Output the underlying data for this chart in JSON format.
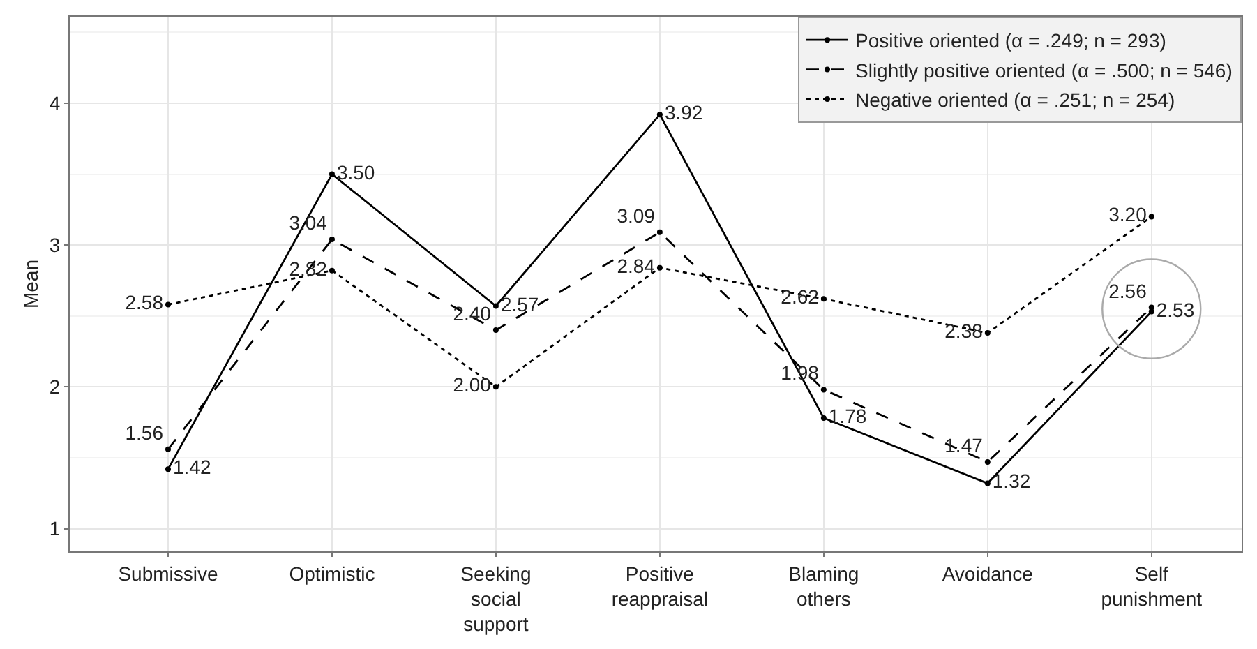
{
  "chart_data": {
    "type": "line",
    "ylabel": "Mean",
    "categories": [
      "Submissive",
      "Optimistic",
      "Seeking social support",
      "Positive reappraisal",
      "Blaming others",
      "Avoidance",
      "Self punishment"
    ],
    "series": [
      {
        "name": "Positive oriented (α = .249; n = 293)",
        "color": "#000000",
        "line_style": "solid",
        "values": [
          1.42,
          3.5,
          2.57,
          3.92,
          1.78,
          1.32,
          2.53
        ],
        "value_labels": [
          "1.42",
          "3.50",
          "2.57",
          "3.92",
          "1.78",
          "1.32",
          "2.53"
        ]
      },
      {
        "name": "Slightly positive oriented (α = .500; n = 546)",
        "color": "#000000",
        "line_style": "dashed",
        "values": [
          1.56,
          3.04,
          2.4,
          3.09,
          1.98,
          1.47,
          2.56
        ],
        "value_labels": [
          "1.56",
          "3.04",
          "2.40",
          "3.09",
          "1.98",
          "1.47",
          "2.56"
        ]
      },
      {
        "name": "Negative oriented (α = .251; n = 254)",
        "color": "#000000",
        "line_style": "dotted",
        "values": [
          2.58,
          2.82,
          2.0,
          2.84,
          2.62,
          2.38,
          3.2
        ],
        "value_labels": [
          "2.58",
          "2.82",
          "2.00",
          "2.84",
          "2.62",
          "2.38",
          "3.20"
        ]
      }
    ],
    "ylim": [
      0.84,
      4.61
    ],
    "yticks": [
      1,
      2,
      3,
      4
    ],
    "grid": true,
    "legend": "top right",
    "marker": "circle"
  }
}
